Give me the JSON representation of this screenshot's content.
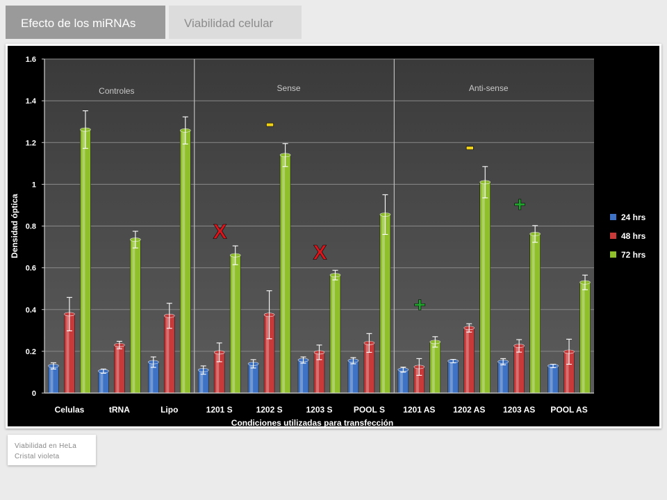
{
  "tabs": [
    {
      "label": "Efecto de los miRNAs",
      "active": true
    },
    {
      "label": "Viabilidad celular",
      "active": false
    }
  ],
  "caption": {
    "line1": "Viabilidad en HeLa",
    "line2": "Cristal violeta"
  },
  "colors": {
    "s24": "#3d72c4",
    "s48": "#c83a3a",
    "s72": "#8fbf2a",
    "plus": "#22a52e",
    "minus": "#f0d21a",
    "x": "#d8161c"
  },
  "chart_data": {
    "type": "bar",
    "ylabel": "Densidad óptica",
    "xlabel": "Condiciones utilizadas para transfección",
    "ylim": [
      0,
      1.6
    ],
    "yticks": [
      "0",
      "0.2",
      "0.4",
      "0.6",
      "0.8",
      "1",
      "1.2",
      "1.4",
      "1.6"
    ],
    "grid": true,
    "legend_position": "right",
    "categories": [
      "Celulas",
      "tRNA",
      "Lipo",
      "1201 S",
      "1202 S",
      "1203 S",
      "POOL S",
      "1201 AS",
      "1202 AS",
      "1203 AS",
      "POOL AS"
    ],
    "series": [
      {
        "name": "24 hrs",
        "values": [
          0.13,
          0.105,
          0.148,
          0.11,
          0.14,
          0.158,
          0.155,
          0.112,
          0.153,
          0.15,
          0.13
        ],
        "errors": [
          0.015,
          0.01,
          0.025,
          0.02,
          0.02,
          0.015,
          0.015,
          0.012,
          0.008,
          0.015,
          0.008
        ]
      },
      {
        "name": "48 hrs",
        "values": [
          0.378,
          0.23,
          0.37,
          0.195,
          0.375,
          0.195,
          0.24,
          0.125,
          0.312,
          0.226,
          0.198
        ],
        "errors": [
          0.08,
          0.018,
          0.06,
          0.045,
          0.115,
          0.035,
          0.045,
          0.04,
          0.02,
          0.03,
          0.06
        ]
      },
      {
        "name": "72 hrs",
        "values": [
          1.262,
          0.735,
          1.258,
          0.66,
          1.14,
          0.565,
          0.855,
          0.245,
          1.01,
          0.762,
          0.53
        ],
        "errors": [
          0.09,
          0.04,
          0.065,
          0.045,
          0.055,
          0.023,
          0.095,
          0.025,
          0.075,
          0.04,
          0.035
        ]
      }
    ],
    "groups": [
      {
        "label": "Controles",
        "from": 0,
        "to": 2
      },
      {
        "label": "Sense",
        "from": 3,
        "to": 6
      },
      {
        "label": "Anti-sense",
        "from": 7,
        "to": 10
      }
    ],
    "annotations": [
      {
        "text": "X",
        "category": 3,
        "y": 0.74,
        "color": "x"
      },
      {
        "text": "X",
        "category": 5,
        "y": 0.64,
        "color": "x"
      },
      {
        "text": "-",
        "category": 4,
        "y": 1.25,
        "color": "minus"
      },
      {
        "text": "-",
        "category": 8,
        "y": 1.14,
        "color": "minus"
      },
      {
        "text": "+",
        "category": 7,
        "y": 0.39,
        "color": "plus"
      },
      {
        "text": "+",
        "category": 9,
        "y": 0.87,
        "color": "plus"
      }
    ]
  }
}
